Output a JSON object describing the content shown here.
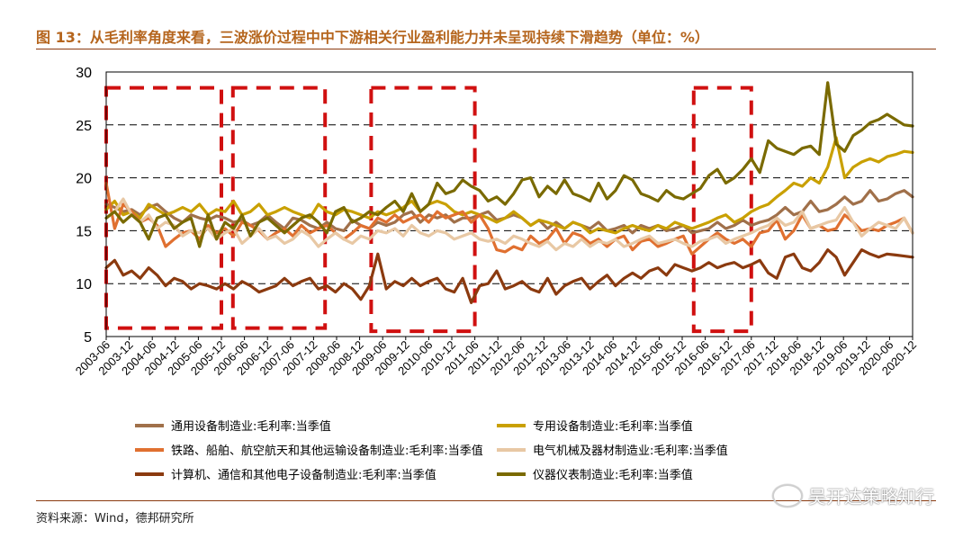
{
  "title": "图 13：从毛利率角度来看，三波涨价过程中中下游相关行业盈利能力并未呈现持续下滑趋势（单位：%）",
  "source": "资料来源：Wind，德邦研究所",
  "watermark": "吴开达策略知行",
  "chart_data": {
    "type": "line",
    "ylim": [
      5,
      30
    ],
    "yticks": [
      5,
      10,
      15,
      20,
      25,
      30
    ],
    "grid": true,
    "legend_position": "bottom",
    "x_start": "2003-06",
    "x_end": "2020-12",
    "x_tick_labels": [
      "2003-06",
      "2003-12",
      "2004-06",
      "2004-12",
      "2005-06",
      "2005-12",
      "2006-06",
      "2006-12",
      "2007-06",
      "2007-12",
      "2008-06",
      "2008-12",
      "2009-06",
      "2009-12",
      "2010-06",
      "2010-12",
      "2011-06",
      "2011-12",
      "2012-06",
      "2012-12",
      "2013-06",
      "2013-12",
      "2014-06",
      "2014-12",
      "2015-06",
      "2015-12",
      "2016-06",
      "2016-12",
      "2017-06",
      "2017-12",
      "2018-06",
      "2018-12",
      "2019-06",
      "2019-12",
      "2020-06",
      "2020-12"
    ],
    "highlight_periods": [
      {
        "from": "2003-06",
        "to": "2005-12",
        "y_from": 5.8,
        "y_to": 28.5
      },
      {
        "from": "2006-03",
        "to": "2008-03",
        "y_from": 5.8,
        "y_to": 28.5
      },
      {
        "from": "2009-03",
        "to": "2011-06",
        "y_from": 5.5,
        "y_to": 28.5
      },
      {
        "from": "2016-03",
        "to": "2017-06",
        "y_from": 5.5,
        "y_to": 28.5
      }
    ],
    "series": [
      {
        "name": "通用设备制造业:毛利率:当季值",
        "color": "#a0704a",
        "values": [
          17.5,
          17.2,
          16.8,
          17,
          16.5,
          17.2,
          17.5,
          16.8,
          16.2,
          15.8,
          16.5,
          16.2,
          16,
          16.4,
          16.2,
          15.8,
          16,
          15.5,
          15.8,
          16.5,
          15.8,
          15.2,
          16.2,
          16,
          15.5,
          15.2,
          15.8,
          15.2,
          15,
          16,
          15.5,
          15.2,
          15.8,
          15.5,
          15.8,
          16.5,
          16.8,
          15.8,
          16.5,
          16.2,
          16.5,
          15.8,
          16.2,
          16.2,
          16.5,
          16.8,
          16,
          16.2,
          16.5,
          16.2,
          15.5,
          16,
          15.2,
          15.8,
          15.2,
          15.8,
          15.5,
          15.2,
          15.8,
          15,
          15.2,
          15.5,
          14.8,
          15.5,
          15.2,
          15.5,
          15,
          15.2,
          15.5,
          14.8,
          15,
          15.2,
          15.8,
          15.2,
          15.5,
          16,
          15.5,
          15.8,
          16,
          16.5,
          17.2,
          16.5,
          16.8,
          17.8,
          16.8,
          17,
          17.5,
          18.2,
          17.5,
          17.8,
          18.8,
          17.8,
          18,
          18.5,
          18.8,
          18.2
        ]
      },
      {
        "name": "专用设备制造业:毛利率:当季值",
        "color": "#c9a000",
        "values": [
          17,
          17.8,
          16.5,
          16.8,
          16.2,
          17.5,
          17,
          16.5,
          16.8,
          17.2,
          16.8,
          17.5,
          16.5,
          17,
          16.8,
          17.8,
          16.5,
          16.8,
          17.5,
          16.5,
          16.8,
          17.2,
          16.8,
          16.5,
          16.2,
          17.5,
          16.8,
          16.5,
          17,
          16.8,
          16.5,
          16.2,
          16.8,
          16.5,
          16.8,
          17.2,
          17.8,
          16.8,
          17.5,
          17.8,
          17.5,
          16.8,
          16.5,
          16.8,
          16.5,
          16.2,
          15.8,
          16.2,
          16.8,
          16.2,
          15.5,
          16,
          15.8,
          15.5,
          15.2,
          15.8,
          15.5,
          14.8,
          15.2,
          15,
          14.8,
          15.2,
          15.5,
          15.2,
          15,
          15.5,
          15.2,
          15.8,
          15.5,
          15.2,
          15.5,
          15.8,
          16.2,
          16.5,
          15.8,
          16.2,
          16.8,
          17.2,
          17.5,
          18.2,
          18.8,
          19.5,
          19.2,
          20,
          19.5,
          21,
          23.8,
          20,
          21,
          21.5,
          21.8,
          21.5,
          22,
          22.2,
          22.5,
          22.4
        ]
      },
      {
        "name": "铁路、船舶、航空航天和其他运输设备制造业:毛利率:当季值",
        "color": "#e07030",
        "values": [
          19.5,
          15.2,
          17.5,
          16.8,
          15.8,
          16.2,
          15.5,
          13.5,
          14.2,
          14.8,
          15,
          14.2,
          15.5,
          14.8,
          15.2,
          14.5,
          15.8,
          15.5,
          15,
          14.2,
          14.8,
          15.2,
          14.5,
          15.5,
          14.8,
          15.2,
          15.5,
          14.8,
          14.2,
          14.8,
          15.5,
          15.2,
          16.2,
          15.8,
          16.5,
          15.8,
          16.2,
          16.5,
          15.8,
          16.8,
          16.2,
          16.5,
          16.8,
          15.8,
          16.5,
          15.2,
          13.2,
          13,
          13.5,
          13.2,
          14.5,
          13.8,
          14.2,
          15.2,
          13.8,
          14.8,
          14.5,
          13.8,
          14.2,
          13.5,
          14.2,
          14.5,
          13.2,
          14,
          14.2,
          13.5,
          13.8,
          14.2,
          14.5,
          12.8,
          13.5,
          14.2,
          14.8,
          14.2,
          13.8,
          14.2,
          13.5,
          14.8,
          15,
          16,
          14.2,
          15,
          16.5,
          15.2,
          15.5,
          15,
          15.2,
          16.5,
          15.8,
          15,
          15.2,
          15,
          15.5,
          15.8,
          16.2,
          14.8
        ]
      },
      {
        "name": "电气机械及器材制造业:毛利率:当季值",
        "color": "#e8c8a4",
        "values": [
          16.2,
          16.8,
          18,
          16.5,
          15.8,
          16.5,
          15.2,
          15.8,
          15.5,
          14.5,
          15,
          14.8,
          15.2,
          14.2,
          14.8,
          15.2,
          13.8,
          14.5,
          15.2,
          14.2,
          14.5,
          13.8,
          14.2,
          15,
          14.5,
          13.5,
          14.2,
          14.8,
          14.2,
          13.8,
          14.5,
          14.2,
          15,
          14.8,
          15.2,
          14.5,
          15.5,
          14.8,
          14.5,
          15,
          14.8,
          14.2,
          14.5,
          14.8,
          14.2,
          14,
          14.2,
          13.8,
          14.5,
          14.2,
          13.8,
          13.5,
          14,
          13.2,
          13.8,
          13.5,
          14.2,
          13.5,
          14,
          13.8,
          14.2,
          13.5,
          13.8,
          14.2,
          14.5,
          13.8,
          14,
          14.2,
          13.8,
          13.5,
          14,
          14.2,
          14.5,
          13.8,
          14.2,
          14.5,
          14.8,
          15.2,
          15.5,
          16.2,
          15.5,
          15.8,
          16.8,
          15.2,
          15.5,
          15.8,
          16,
          17.2,
          15.8,
          14.5,
          15.2,
          15.8,
          15.5,
          15.2,
          16.2,
          14.8
        ]
      },
      {
        "name": "计算机、通信和其他电子设备制造业:毛利率:当季值",
        "color": "#8b3a0f",
        "values": [
          11.5,
          12.2,
          10.8,
          11.2,
          10.5,
          11.5,
          10.8,
          9.8,
          10.5,
          10.2,
          9.5,
          10,
          9.8,
          9.5,
          10,
          9.5,
          10.2,
          9.8,
          9.2,
          9.5,
          9.8,
          10.5,
          9.8,
          10.2,
          10.5,
          9.5,
          9.8,
          9.2,
          10,
          9.5,
          8.5,
          9.8,
          12.8,
          9.5,
          10.2,
          9.8,
          10.5,
          9.8,
          10.2,
          10.5,
          9.5,
          9.2,
          10.5,
          8.2,
          9.8,
          10,
          11.2,
          9.5,
          9.8,
          10.2,
          9.5,
          9.2,
          10.5,
          9,
          9.8,
          10.2,
          10.5,
          9.5,
          10.2,
          10.8,
          9.8,
          10.5,
          11,
          10.5,
          11.2,
          11.5,
          10.8,
          11.8,
          11.5,
          11.2,
          11.5,
          12,
          11.5,
          11.8,
          12,
          11.5,
          11.8,
          12.2,
          11,
          10.5,
          12.5,
          12.8,
          11.5,
          11.2,
          12,
          13.2,
          12.5,
          10.8,
          12,
          13.2,
          12.8,
          12.5,
          12.8,
          12.7,
          12.6,
          12.5
        ]
      },
      {
        "name": "仪器仪表制造业:毛利率:当季值",
        "color": "#7a6a00",
        "values": [
          16.2,
          16.8,
          15.8,
          16.5,
          15.8,
          14.2,
          16.2,
          16.5,
          15.2,
          15.8,
          16.2,
          13.5,
          16.5,
          14.2,
          15.8,
          15.2,
          16.5,
          14.5,
          15.8,
          16.2,
          15.5,
          14.8,
          15.5,
          16.2,
          16.5,
          15.8,
          14.8,
          16.8,
          17.2,
          15.8,
          16.2,
          16.8,
          16.5,
          17.2,
          17.8,
          16.8,
          18.5,
          16.8,
          17.5,
          19.5,
          18.5,
          18.8,
          19.8,
          19.2,
          18.8,
          17.8,
          18.2,
          17.5,
          18.5,
          19.8,
          20,
          18.2,
          19.2,
          18.5,
          19.8,
          18.5,
          18.2,
          17.8,
          19.5,
          18,
          18.8,
          20.2,
          19.8,
          18.5,
          18.2,
          17.8,
          18.8,
          18.2,
          18,
          18.5,
          19,
          20.2,
          20.8,
          19.5,
          20,
          20.8,
          21.8,
          20.5,
          23.5,
          22.8,
          22.5,
          22.2,
          22.8,
          23,
          22.2,
          29,
          23.2,
          22.5,
          24,
          24.5,
          25.2,
          25.5,
          26,
          25.5,
          25,
          24.9
        ]
      }
    ]
  }
}
